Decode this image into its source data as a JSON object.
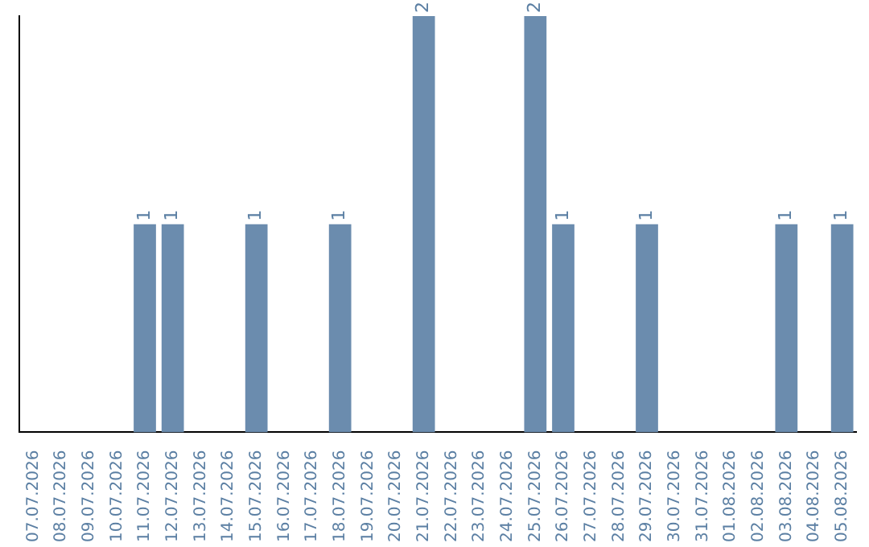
{
  "chart_data": {
    "type": "bar",
    "categories": [
      "07.07.2026",
      "08.07.2026",
      "09.07.2026",
      "10.07.2026",
      "11.07.2026",
      "12.07.2026",
      "13.07.2026",
      "14.07.2026",
      "15.07.2026",
      "16.07.2026",
      "17.07.2026",
      "18.07.2026",
      "19.07.2026",
      "20.07.2026",
      "21.07.2026",
      "22.07.2026",
      "23.07.2026",
      "24.07.2026",
      "25.07.2026",
      "26.07.2026",
      "27.07.2026",
      "28.07.2026",
      "29.07.2026",
      "30.07.2026",
      "31.07.2026",
      "01.08.2026",
      "02.08.2026",
      "03.08.2026",
      "04.08.2026",
      "05.08.2026"
    ],
    "values": [
      0,
      0,
      0,
      0,
      1,
      1,
      0,
      0,
      1,
      0,
      0,
      1,
      0,
      0,
      2,
      0,
      0,
      0,
      2,
      1,
      0,
      0,
      1,
      0,
      0,
      0,
      0,
      1,
      0,
      1
    ],
    "value_labels": [
      null,
      null,
      null,
      null,
      "1",
      "1",
      null,
      null,
      "1",
      null,
      null,
      "1",
      null,
      null,
      "2",
      null,
      null,
      null,
      "2",
      "1",
      null,
      null,
      "1",
      null,
      null,
      null,
      null,
      "1",
      null,
      "1"
    ],
    "color": "#6b8cae",
    "ylim": [
      0,
      2
    ],
    "tick_labels": "x",
    "grid": false,
    "legend": false
  }
}
